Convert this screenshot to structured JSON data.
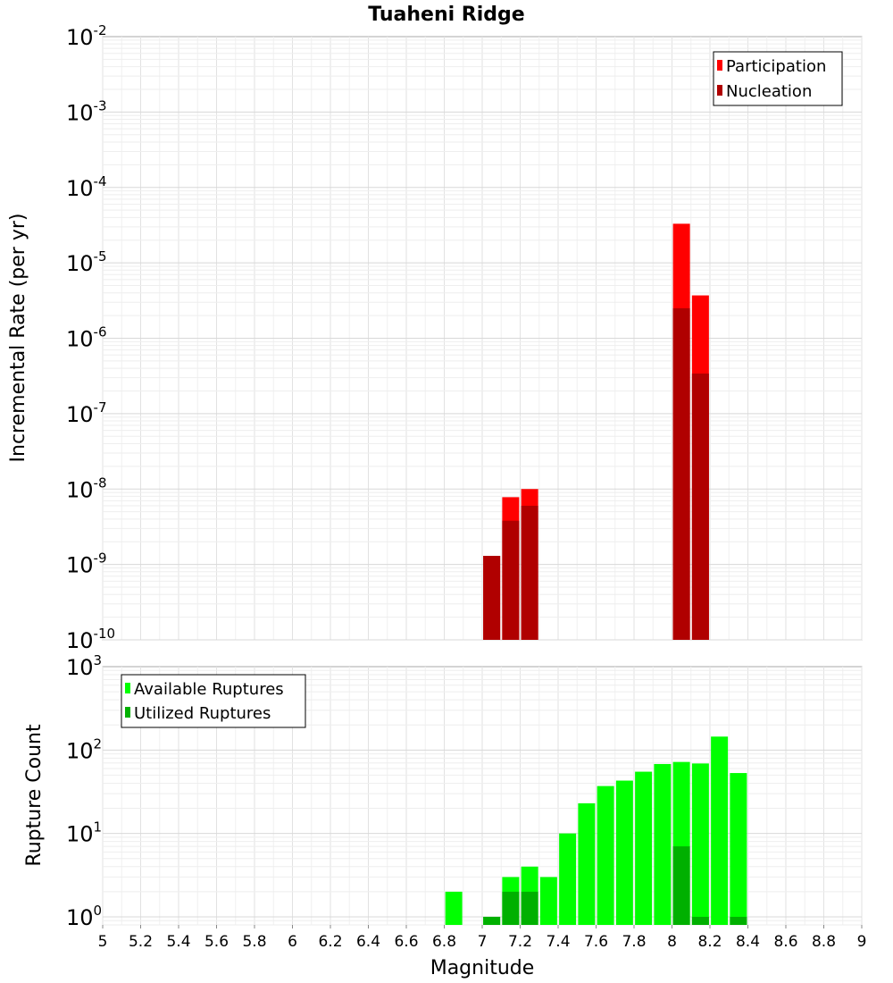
{
  "title": "Tuaheni Ridge",
  "chart_data": [
    {
      "type": "bar",
      "yscale": "log",
      "ylabel": "Incremental Rate (per yr)",
      "ylim": [
        1e-10,
        0.01
      ],
      "xlim": [
        5,
        9
      ],
      "grid": true,
      "legend_position": "top-right",
      "series": [
        {
          "name": "Participation",
          "color": "#ff0000",
          "x": [
            7.05,
            7.15,
            7.25,
            8.05,
            8.15
          ],
          "values": [
            1.3e-09,
            7.8e-09,
            1e-08,
            3.3e-05,
            3.7e-06
          ]
        },
        {
          "name": "Nucleation",
          "color": "#b00000",
          "x": [
            7.05,
            7.15,
            7.25,
            8.05,
            8.15
          ],
          "values": [
            1.3e-09,
            3.8e-09,
            6e-09,
            2.5e-06,
            3.4e-07
          ]
        }
      ]
    },
    {
      "type": "bar",
      "yscale": "log",
      "ylabel": "Rupture Count",
      "xlabel": "Magnitude",
      "ylim": [
        0.8,
        1000
      ],
      "xlim": [
        5,
        9
      ],
      "grid": true,
      "legend_position": "top-left",
      "series": [
        {
          "name": "Available Ruptures",
          "color": "#00ff00",
          "x": [
            6.85,
            7.05,
            7.15,
            7.25,
            7.35,
            7.45,
            7.55,
            7.65,
            7.75,
            7.85,
            7.95,
            8.05,
            8.15,
            8.25,
            8.35
          ],
          "values": [
            2,
            1,
            3,
            4,
            3,
            10,
            23,
            37,
            43,
            55,
            68,
            72,
            69,
            145,
            53
          ]
        },
        {
          "name": "Utilized Ruptures",
          "color": "#00b000",
          "x": [
            7.05,
            7.15,
            7.25,
            8.05,
            8.15,
            8.35
          ],
          "values": [
            1,
            2,
            2,
            7,
            1,
            1
          ]
        }
      ]
    }
  ],
  "x_ticks": [
    "5",
    "5.2",
    "5.4",
    "5.6",
    "5.8",
    "6",
    "6.2",
    "6.4",
    "6.6",
    "6.8",
    "7",
    "7.2",
    "7.4",
    "7.6",
    "7.8",
    "8",
    "8.2",
    "8.4",
    "8.6",
    "8.8",
    "9"
  ],
  "top_y_ticks": [
    {
      "base": "10",
      "exp": "-2"
    },
    {
      "base": "10",
      "exp": "-3"
    },
    {
      "base": "10",
      "exp": "-4"
    },
    {
      "base": "10",
      "exp": "-5"
    },
    {
      "base": "10",
      "exp": "-6"
    },
    {
      "base": "10",
      "exp": "-7"
    },
    {
      "base": "10",
      "exp": "-8"
    },
    {
      "base": "10",
      "exp": "-9"
    },
    {
      "base": "10",
      "exp": "-10"
    }
  ],
  "bottom_y_ticks": [
    {
      "base": "10",
      "exp": "3"
    },
    {
      "base": "10",
      "exp": "2"
    },
    {
      "base": "10",
      "exp": "1"
    },
    {
      "base": "10",
      "exp": "0"
    }
  ]
}
